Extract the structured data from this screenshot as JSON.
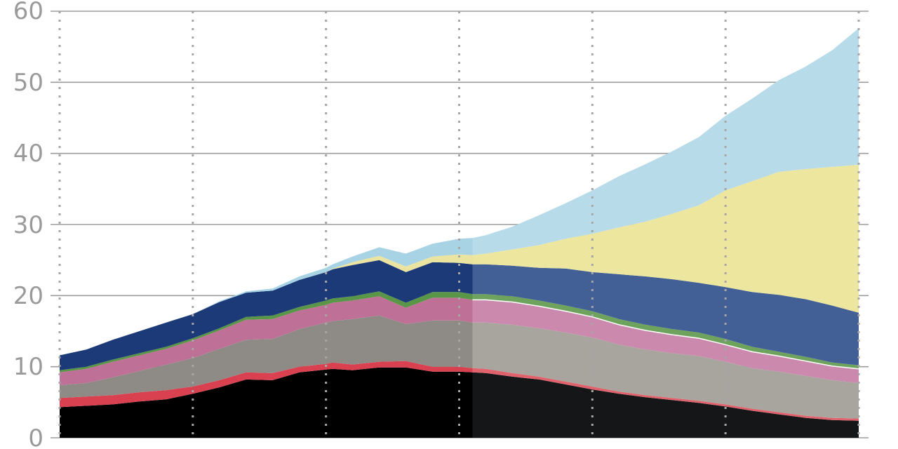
{
  "chart_data": {
    "type": "area",
    "stacked": true,
    "title": "",
    "xlabel": "",
    "ylabel": "",
    "ylim": [
      0,
      60
    ],
    "xlim": [
      0,
      120
    ],
    "y_ticks": [
      "0",
      "10",
      "20",
      "30",
      "40",
      "50",
      "60"
    ],
    "grid": "horizontal solid lines, vertical dotted lines",
    "vertical_gridlines_at": [
      0,
      20,
      40,
      60,
      80,
      100,
      120
    ],
    "projection_starts_at": 62,
    "x": [
      0,
      4,
      8,
      12,
      16,
      20,
      24,
      28,
      32,
      36,
      40,
      41,
      44,
      48,
      52,
      56,
      60,
      62,
      64,
      68,
      72,
      76,
      80,
      84,
      88,
      92,
      96,
      100,
      104,
      108,
      112,
      116,
      120
    ],
    "series": [
      {
        "color": "#000000",
        "projection_color": "#141617",
        "values": [
          4.3,
          4.5,
          4.7,
          5.1,
          5.4,
          6.2,
          7.1,
          8.2,
          8.1,
          9.2,
          9.6,
          9.7,
          9.5,
          9.9,
          9.9,
          9.3,
          9.3,
          9.2,
          9.1,
          8.6,
          8.2,
          7.5,
          6.8,
          6.2,
          5.7,
          5.3,
          4.9,
          4.4,
          3.8,
          3.3,
          2.8,
          2.5,
          2.4
        ]
      },
      {
        "color": "#d94150",
        "projection_color": "#e0626d",
        "values": [
          1.3,
          1.3,
          1.3,
          1.3,
          1.3,
          1.0,
          1.0,
          1.0,
          1.0,
          0.8,
          0.8,
          0.9,
          0.8,
          0.8,
          0.9,
          0.7,
          0.7,
          0.6,
          0.6,
          0.5,
          0.4,
          0.4,
          0.4,
          0.3,
          0.3,
          0.3,
          0.3,
          0.3,
          0.3,
          0.3,
          0.3,
          0.3,
          0.3
        ]
      },
      {
        "color": "#8e8a86",
        "projection_color": "#a8a49e",
        "values": [
          1.8,
          1.9,
          2.5,
          3.0,
          3.6,
          4.0,
          4.4,
          4.6,
          4.8,
          5.3,
          5.8,
          5.8,
          6.4,
          6.5,
          5.2,
          6.5,
          6.5,
          6.4,
          6.5,
          6.8,
          6.8,
          6.9,
          6.9,
          6.6,
          6.4,
          6.3,
          6.3,
          6.0,
          5.7,
          5.7,
          5.6,
          5.3,
          5.0
        ]
      },
      {
        "color": "#bf7096",
        "projection_color": "#cb8aad",
        "values": [
          1.8,
          2.0,
          2.2,
          2.2,
          2.2,
          2.5,
          2.6,
          2.8,
          2.8,
          2.6,
          2.5,
          2.6,
          2.6,
          2.7,
          2.3,
          3.2,
          3.2,
          3.2,
          3.2,
          3.2,
          3.1,
          3.0,
          2.9,
          2.8,
          2.7,
          2.6,
          2.5,
          2.4,
          2.3,
          2.2,
          2.1,
          2.0,
          2.0
        ]
      },
      {
        "color": "#5a9648",
        "projection_color": "#6da35c",
        "values": [
          0.3,
          0.3,
          0.3,
          0.3,
          0.3,
          0.3,
          0.3,
          0.4,
          0.5,
          0.5,
          0.6,
          0.6,
          0.6,
          0.7,
          0.7,
          0.8,
          0.8,
          0.8,
          0.8,
          0.8,
          0.8,
          0.8,
          0.8,
          0.8,
          0.8,
          0.8,
          0.8,
          0.8,
          0.7,
          0.6,
          0.6,
          0.5,
          0.5
        ]
      },
      {
        "color": "#1c3a78",
        "projection_color": "#425f96",
        "values": [
          2.1,
          2.4,
          2.8,
          3.1,
          3.4,
          3.4,
          3.7,
          3.4,
          3.5,
          3.8,
          4.0,
          4.1,
          4.4,
          4.4,
          4.3,
          4.2,
          4.1,
          4.2,
          4.2,
          4.3,
          4.6,
          5.2,
          5.5,
          6.3,
          6.8,
          7.0,
          7.0,
          7.3,
          7.7,
          8.0,
          8.1,
          8.0,
          7.4
        ]
      },
      {
        "color": "#ebe3a0",
        "projection_color": "#ede69f",
        "values": [
          0,
          0,
          0,
          0,
          0,
          0,
          0,
          0,
          0,
          0,
          0,
          0.1,
          0.4,
          0.6,
          0.8,
          0.8,
          1.2,
          1.3,
          1.5,
          2.3,
          3.2,
          4.2,
          5.4,
          6.6,
          7.7,
          9.2,
          10.9,
          13.6,
          15.6,
          17.3,
          18.3,
          19.5,
          20.8
        ]
      },
      {
        "color": "#a7d3e5",
        "projection_color": "#b8dbe9",
        "values": [
          0,
          0,
          0,
          0,
          0,
          0,
          0.1,
          0.2,
          0.3,
          0.5,
          0.6,
          0.6,
          0.8,
          1.2,
          1.8,
          1.8,
          2.2,
          2.4,
          2.6,
          3.2,
          4.2,
          5.0,
          6.1,
          7.2,
          8.1,
          8.8,
          9.6,
          10.5,
          11.6,
          12.9,
          14.4,
          16.4,
          19.2
        ]
      }
    ]
  }
}
